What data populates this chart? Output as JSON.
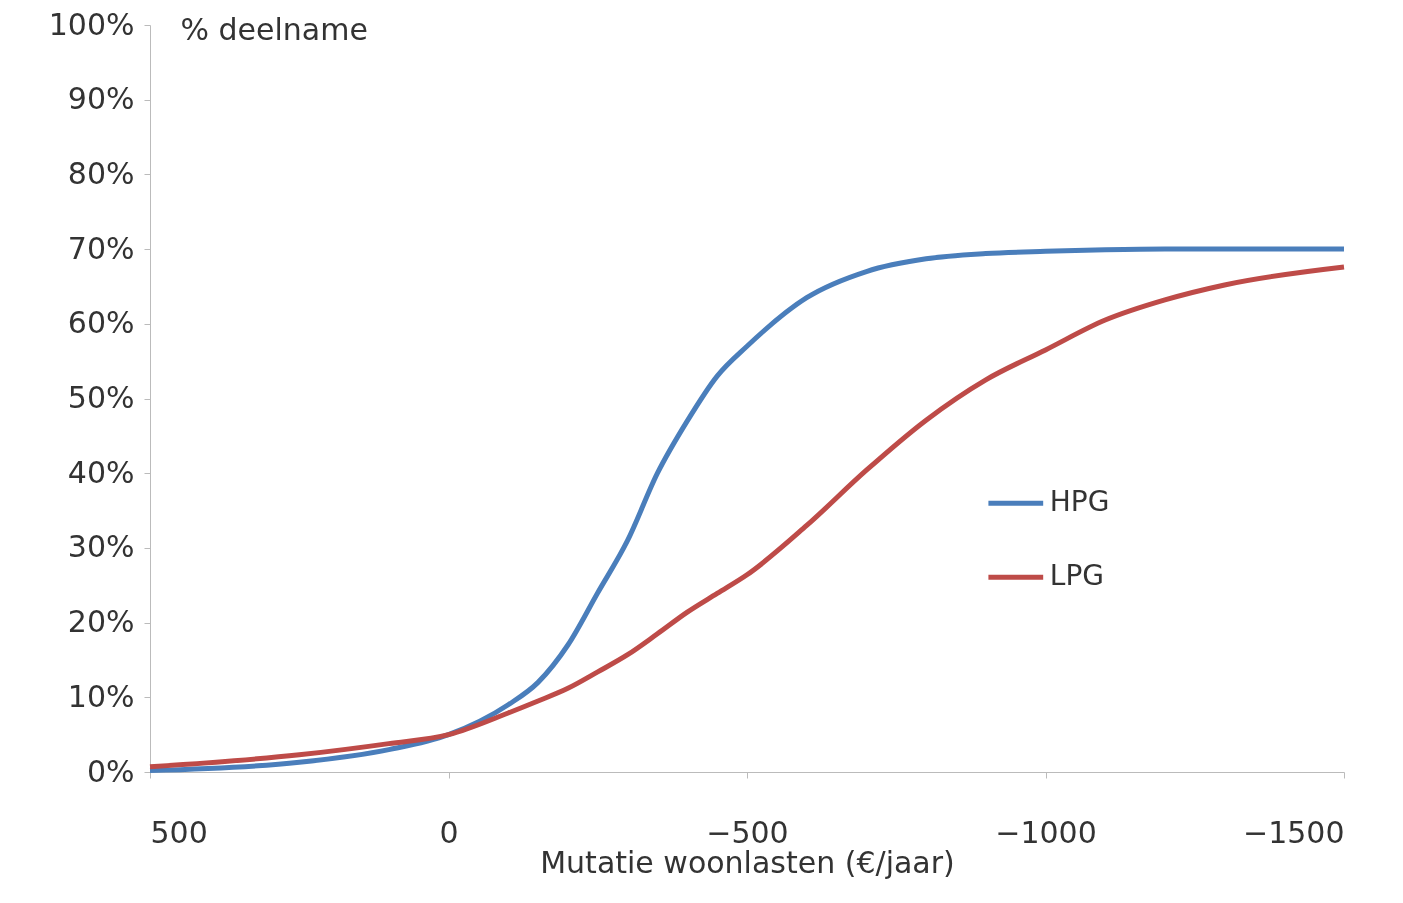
{
  "chart_data": {
    "type": "line",
    "xlabel": "Mutatie woonlasten (€/jaar)",
    "ylabel": "% deelname",
    "x": [
      500,
      250,
      100,
      0,
      -100,
      -150,
      -200,
      -250,
      -300,
      -350,
      -400,
      -450,
      -500,
      -600,
      -700,
      -800,
      -900,
      -1000,
      -1100,
      -1200,
      -1300,
      -1500
    ],
    "series": [
      {
        "name": "HPG",
        "color": "#4a7ebb",
        "values": [
          0.2,
          1.3,
          3,
          5,
          9,
          12,
          17,
          24,
          31,
          40,
          47,
          53,
          57,
          63.5,
          67,
          68.7,
          69.4,
          69.7,
          69.9,
          70,
          70,
          70
        ]
      },
      {
        "name": "LPG",
        "color": "#be4b48",
        "values": [
          0.7,
          2.3,
          3.8,
          5,
          7.9,
          9.5,
          11.2,
          13.4,
          15.7,
          18.5,
          21.4,
          23.9,
          26.4,
          33,
          40.4,
          47.1,
          52.5,
          56.5,
          60.5,
          63.2,
          65.2,
          67.6
        ]
      }
    ],
    "xlim": [
      500,
      -1500
    ],
    "xticks": [
      500,
      0,
      -500,
      -1000,
      -1500
    ],
    "ylim": [
      0,
      100
    ],
    "yticks": [
      {
        "value": 0,
        "label": "0%"
      },
      {
        "value": 10,
        "label": "10%"
      },
      {
        "value": 20,
        "label": "20%"
      },
      {
        "value": 30,
        "label": "30%"
      },
      {
        "value": 40,
        "label": "40%"
      },
      {
        "value": 50,
        "label": "50%"
      },
      {
        "value": 60,
        "label": "60%"
      },
      {
        "value": 70,
        "label": "70%"
      },
      {
        "value": 80,
        "label": "80%"
      },
      {
        "value": 90,
        "label": "90%"
      },
      {
        "value": 100,
        "label": "100%"
      }
    ],
    "grid": false,
    "legend": "right",
    "marker": "none",
    "line_style": "solid"
  }
}
